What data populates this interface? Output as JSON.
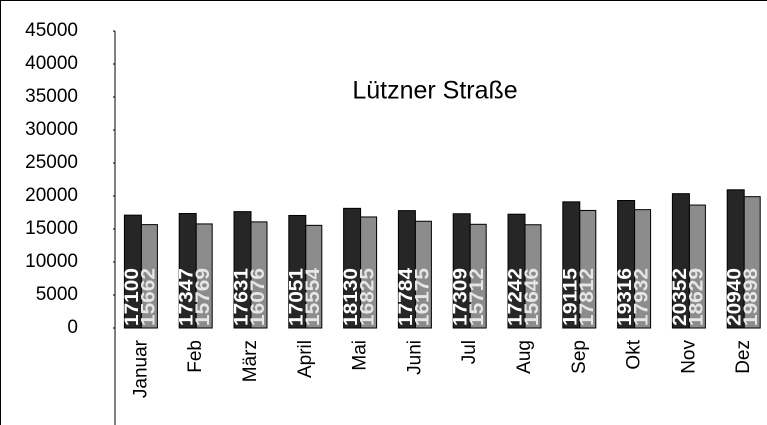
{
  "chart_data": {
    "type": "bar",
    "title": "Lützner Straße",
    "categories": [
      "Januar",
      "Feb",
      "März",
      "April",
      "Mai",
      "Juni",
      "Jul",
      "Aug",
      "Sep",
      "Okt",
      "Nov",
      "Dez"
    ],
    "series": [
      {
        "color": "#262626",
        "values": [
          17100,
          17347,
          17631,
          17051,
          18130,
          17784,
          17309,
          17242,
          19115,
          19316,
          20352,
          20940
        ]
      },
      {
        "color": "#8c8c8c",
        "values": [
          15662,
          15769,
          16076,
          15554,
          16825,
          16175,
          15712,
          15646,
          17812,
          17932,
          18629,
          19898
        ]
      }
    ],
    "ylim": [
      0,
      45000
    ],
    "yticks": [
      0,
      5000,
      10000,
      15000,
      20000,
      25000,
      30000,
      35000,
      40000,
      45000
    ]
  }
}
